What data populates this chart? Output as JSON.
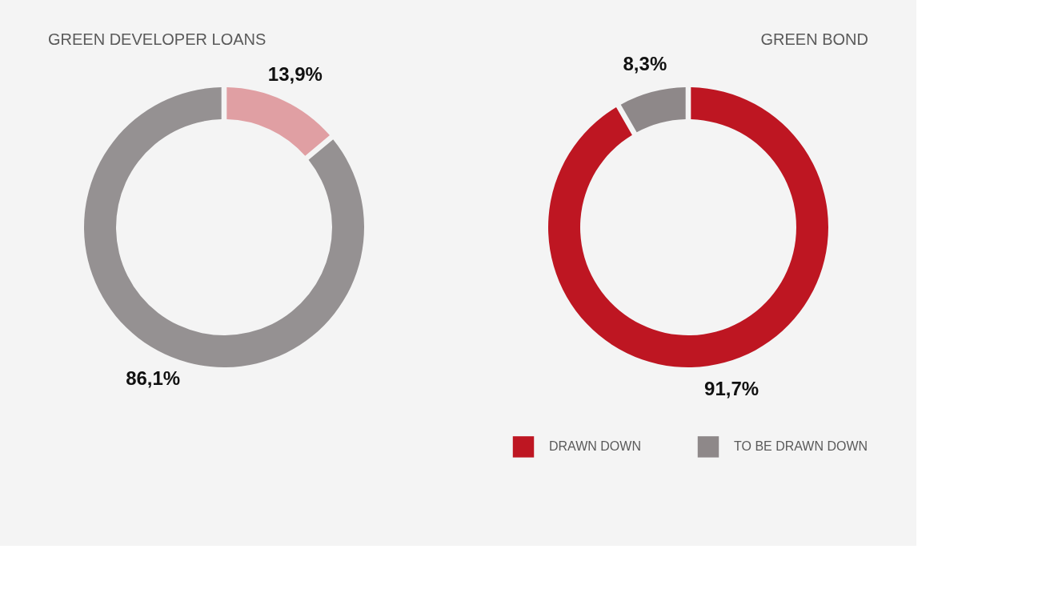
{
  "chart_data": [
    {
      "type": "donut",
      "title": "GREEN DEVELOPER LOANS",
      "categories": [
        null,
        null
      ],
      "values": [
        13.9,
        86.1
      ],
      "colors": [
        "#e09fa3",
        "#959192"
      ],
      "value_labels": [
        "13,9%",
        "86,1%"
      ]
    },
    {
      "type": "donut",
      "title": "GREEN BOND",
      "categories": [
        "DRAWN DOWN",
        "TO BE DRAWN DOWN"
      ],
      "values": [
        91.7,
        8.3
      ],
      "colors": [
        "#be1622",
        "#8e8889"
      ],
      "value_labels": [
        "91,7%",
        "8,3%"
      ],
      "legend": "bottom"
    }
  ]
}
